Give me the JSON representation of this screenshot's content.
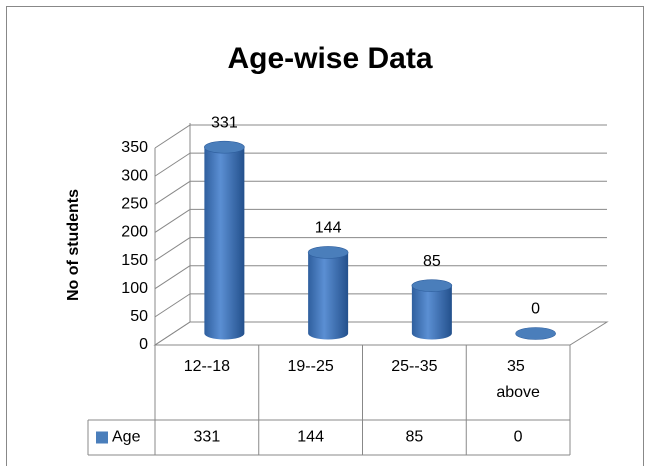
{
  "chart_data": {
    "type": "bar",
    "title": "Age-wise Data",
    "y_label": "No of students",
    "categories": [
      "12--18",
      "19--25",
      "25--35",
      "35 above"
    ],
    "series": [
      {
        "name": "Age",
        "color": "#4a7ebb",
        "values": [
          331,
          144,
          85,
          0
        ]
      }
    ],
    "ylim": [
      0,
      350
    ],
    "yticks": [
      0,
      50,
      100,
      150,
      200,
      250,
      300,
      350
    ],
    "grid": true,
    "data_table": true
  }
}
